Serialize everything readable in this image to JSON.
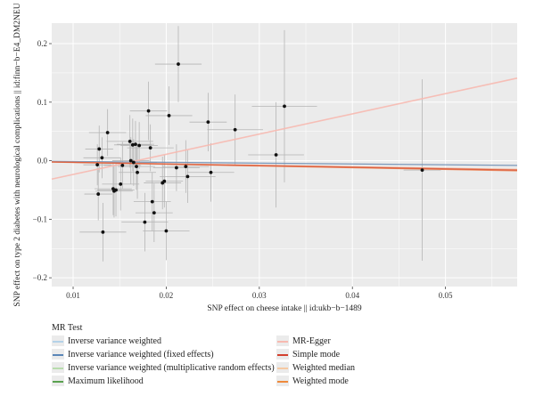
{
  "chart_data": {
    "type": "scatter",
    "xlabel": "SNP effect on cheese intake || id:ukb−b−1489",
    "ylabel": "SNP effect on type 2 diabetes with neurological complications || id:finn−b−E4_DM2NEU",
    "xlim": [
      0.0077,
      0.0577
    ],
    "ylim": [
      -0.215,
      0.235
    ],
    "xticks": [
      0.01,
      0.02,
      0.03,
      0.04,
      0.05
    ],
    "xtick_labels": [
      "0.01",
      "0.02",
      "0.03",
      "0.04",
      "0.05"
    ],
    "yticks": [
      -0.2,
      -0.1,
      0.0,
      0.1,
      0.2
    ],
    "ytick_labels": [
      "−0.2",
      "−0.1",
      "0.0",
      "0.1",
      "0.2"
    ],
    "grid": true,
    "points": [
      {
        "x": 0.0213,
        "y": 0.165,
        "xerr": 0.0025,
        "yerr": 0.065
      },
      {
        "x": 0.0203,
        "y": 0.077,
        "xerr": 0.0025,
        "yerr": 0.05
      },
      {
        "x": 0.0181,
        "y": 0.085,
        "xerr": 0.002,
        "yerr": 0.05
      },
      {
        "x": 0.0245,
        "y": 0.066,
        "xerr": 0.002,
        "yerr": 0.05
      },
      {
        "x": 0.0274,
        "y": 0.053,
        "xerr": 0.003,
        "yerr": 0.06
      },
      {
        "x": 0.0327,
        "y": 0.093,
        "xerr": 0.0035,
        "yerr": 0.13
      },
      {
        "x": 0.0318,
        "y": 0.01,
        "xerr": 0.003,
        "yerr": 0.09
      },
      {
        "x": 0.0475,
        "y": -0.016,
        "xerr": 0.002,
        "yerr": 0.155
      },
      {
        "x": 0.0137,
        "y": 0.048,
        "xerr": 0.002,
        "yerr": 0.04
      },
      {
        "x": 0.0161,
        "y": 0.033,
        "xerr": 0.0025,
        "yerr": 0.045
      },
      {
        "x": 0.0164,
        "y": 0.027,
        "xerr": 0.002,
        "yerr": 0.045
      },
      {
        "x": 0.0167,
        "y": 0.028,
        "xerr": 0.002,
        "yerr": 0.04
      },
      {
        "x": 0.0171,
        "y": 0.026,
        "xerr": 0.002,
        "yerr": 0.04
      },
      {
        "x": 0.0183,
        "y": 0.022,
        "xerr": 0.0025,
        "yerr": 0.04
      },
      {
        "x": 0.0128,
        "y": 0.02,
        "xerr": 0.0015,
        "yerr": 0.04
      },
      {
        "x": 0.0131,
        "y": 0.005,
        "xerr": 0.002,
        "yerr": 0.035
      },
      {
        "x": 0.0162,
        "y": 0.0,
        "xerr": 0.002,
        "yerr": 0.04
      },
      {
        "x": 0.0165,
        "y": -0.003,
        "xerr": 0.0025,
        "yerr": 0.04
      },
      {
        "x": 0.0126,
        "y": -0.007,
        "xerr": 0.0015,
        "yerr": 0.035
      },
      {
        "x": 0.0153,
        "y": -0.008,
        "xerr": 0.002,
        "yerr": 0.04
      },
      {
        "x": 0.0168,
        "y": -0.01,
        "xerr": 0.002,
        "yerr": 0.04
      },
      {
        "x": 0.0169,
        "y": -0.02,
        "xerr": 0.002,
        "yerr": 0.045
      },
      {
        "x": 0.0211,
        "y": -0.012,
        "xerr": 0.0025,
        "yerr": 0.04
      },
      {
        "x": 0.0221,
        "y": -0.01,
        "xerr": 0.0025,
        "yerr": 0.045
      },
      {
        "x": 0.0223,
        "y": -0.027,
        "xerr": 0.003,
        "yerr": 0.045
      },
      {
        "x": 0.0248,
        "y": -0.02,
        "xerr": 0.0025,
        "yerr": 0.05
      },
      {
        "x": 0.0198,
        "y": -0.035,
        "xerr": 0.002,
        "yerr": 0.045
      },
      {
        "x": 0.0196,
        "y": -0.038,
        "xerr": 0.002,
        "yerr": 0.045
      },
      {
        "x": 0.0151,
        "y": -0.04,
        "xerr": 0.002,
        "yerr": 0.045
      },
      {
        "x": 0.0143,
        "y": -0.048,
        "xerr": 0.002,
        "yerr": 0.045
      },
      {
        "x": 0.0146,
        "y": -0.05,
        "xerr": 0.002,
        "yerr": 0.045
      },
      {
        "x": 0.0144,
        "y": -0.052,
        "xerr": 0.002,
        "yerr": 0.045
      },
      {
        "x": 0.0127,
        "y": -0.057,
        "xerr": 0.0015,
        "yerr": 0.045
      },
      {
        "x": 0.0185,
        "y": -0.07,
        "xerr": 0.002,
        "yerr": 0.05
      },
      {
        "x": 0.0187,
        "y": -0.089,
        "xerr": 0.002,
        "yerr": 0.05
      },
      {
        "x": 0.0177,
        "y": -0.105,
        "xerr": 0.0025,
        "yerr": 0.05
      },
      {
        "x": 0.0132,
        "y": -0.122,
        "xerr": 0.0025,
        "yerr": 0.05
      },
      {
        "x": 0.02,
        "y": -0.12,
        "xerr": 0.0025,
        "yerr": 0.05
      }
    ],
    "lines": [
      {
        "name": "MR-Egger",
        "color": "#f7b9b0",
        "intercept": -0.058,
        "slope": 3.45
      },
      {
        "name": "Inverse variance weighted",
        "color": "#6f8fb5",
        "slope": -0.14
      },
      {
        "name": "Weighted median",
        "color": "#f4a98a",
        "slope": -0.26
      },
      {
        "name": "Weighted mode",
        "color": "#ee8a5b",
        "slope": -0.3
      },
      {
        "name": "Simple mode",
        "color": "#d95a3b",
        "slope": -0.28
      }
    ],
    "legend": {
      "title": "MR Test",
      "placement": "bottom",
      "items": [
        {
          "label": "Inverse variance weighted",
          "color": "#b4d2e8"
        },
        {
          "label": "Inverse variance weighted (fixed effects)",
          "color": "#5a86b8"
        },
        {
          "label": "Inverse variance weighted (multiplicative random effects)",
          "color": "#b8dcae"
        },
        {
          "label": "Maximum likelihood",
          "color": "#59a14f"
        },
        {
          "label": "MR-Egger",
          "color": "#f7b9b0"
        },
        {
          "label": "Simple mode",
          "color": "#d3402e"
        },
        {
          "label": "Weighted median",
          "color": "#f6c9a3"
        },
        {
          "label": "Weighted mode",
          "color": "#ef8a3c"
        }
      ]
    }
  }
}
